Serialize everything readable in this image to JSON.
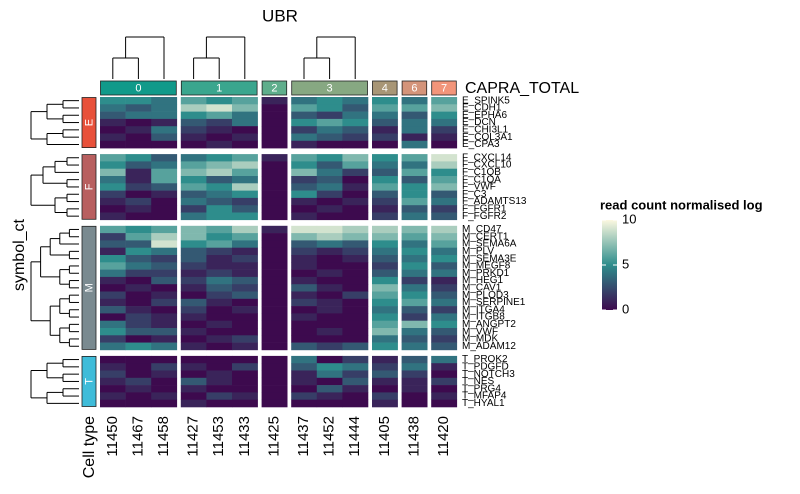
{
  "chart_data": {
    "type": "heatmap",
    "title": "UBR",
    "column_annotation_title": "CAPRA_TOTAL",
    "row_title": "symbol_ct",
    "column_title": "Cell type",
    "legend_title": "read count normalised log",
    "zlim": [
      0,
      10
    ],
    "zticks": [
      0,
      5,
      10
    ],
    "colorscale": [
      "#3d0a4e",
      "#2e8d8c",
      "#fcf8e0"
    ],
    "column_groups": [
      {
        "label": "0",
        "color": "#119a8a",
        "columns": [
          "11450",
          "11467",
          "11458"
        ]
      },
      {
        "label": "1",
        "color": "#3aa68e",
        "columns": [
          "11427",
          "11453",
          "11433"
        ]
      },
      {
        "label": "2",
        "color": "#5fae8c",
        "columns": [
          "11425"
        ]
      },
      {
        "label": "3",
        "color": "#87a882",
        "columns": [
          "11437",
          "11452",
          "11444"
        ]
      },
      {
        "label": "4",
        "color": "#a89676",
        "columns": [
          "11405"
        ]
      },
      {
        "label": "6",
        "color": "#d4947a",
        "columns": [
          "11438"
        ]
      },
      {
        "label": "7",
        "color": "#f2957a",
        "columns": [
          "11420"
        ]
      }
    ],
    "row_groups": [
      {
        "label": "E",
        "color": "#e8513a",
        "rows": [
          "E_SPINK5",
          "E_CDH1",
          "E_EPHA6",
          "E_DCN",
          "E_CHI3L1",
          "E_COL3A1",
          "E_CPA3"
        ],
        "values": [
          [
            5,
            5,
            4,
            6,
            5,
            6,
            1,
            4,
            5,
            4,
            5,
            4,
            6
          ],
          [
            4,
            3,
            4,
            8,
            9,
            7,
            0,
            6,
            5,
            3,
            6,
            6,
            7
          ],
          [
            3,
            4,
            4,
            5,
            6,
            4,
            0,
            3,
            2,
            4,
            4,
            3,
            5
          ],
          [
            1,
            0,
            1,
            3,
            2,
            4,
            0,
            5,
            6,
            5,
            3,
            4,
            4
          ],
          [
            0,
            1,
            4,
            2,
            1,
            0,
            0,
            2,
            4,
            3,
            1,
            4,
            2
          ],
          [
            1,
            0,
            3,
            1,
            0,
            1,
            0,
            4,
            3,
            2,
            2,
            1,
            1
          ],
          [
            0,
            0,
            0,
            0,
            1,
            0,
            0,
            1,
            0,
            0,
            0,
            4,
            0
          ]
        ]
      },
      {
        "label": "F",
        "color": "#b85f5f",
        "rows": [
          "F_CXCL14",
          "F_CXCL10",
          "F_C1QB",
          "F_C1QA",
          "F_VWF",
          "F_C3",
          "F_ADAMTS13",
          "F_FGFR1",
          "F_FGFR2"
        ],
        "values": [
          [
            6,
            5,
            3,
            4,
            5,
            6,
            1,
            6,
            5,
            7,
            5,
            6,
            9
          ],
          [
            5,
            3,
            4,
            6,
            7,
            8,
            0,
            5,
            3,
            6,
            4,
            4,
            8
          ],
          [
            7,
            1,
            6,
            7,
            8,
            6,
            0,
            7,
            4,
            2,
            3,
            6,
            5
          ],
          [
            4,
            1,
            6,
            5,
            3,
            4,
            0,
            2,
            3,
            0,
            5,
            3,
            6
          ],
          [
            5,
            2,
            3,
            6,
            5,
            8,
            0,
            3,
            4,
            1,
            6,
            5,
            7
          ],
          [
            2,
            0,
            1,
            3,
            4,
            5,
            0,
            5,
            2,
            0,
            3,
            5,
            3
          ],
          [
            1,
            2,
            0,
            4,
            3,
            2,
            0,
            1,
            0,
            1,
            2,
            6,
            4
          ],
          [
            0,
            1,
            0,
            2,
            5,
            3,
            0,
            0,
            1,
            0,
            1,
            3,
            2
          ],
          [
            1,
            0,
            0,
            4,
            5,
            5,
            0,
            1,
            0,
            0,
            2,
            4,
            3
          ]
        ]
      },
      {
        "label": "M",
        "color": "#7a8a90",
        "rows": [
          "M_CD47",
          "M_CERT1",
          "M_SEMA6A",
          "M_PLV",
          "M_SEMA3E",
          "M_MEGF8",
          "M_PRKD1",
          "M_HEG1",
          "M_CAV1",
          "M_PLOD3",
          "M_SERPINE1",
          "M_ITGA4",
          "M_ITGB8",
          "M_ANGPT2",
          "M_VWF",
          "M_MDK",
          "M_ADAM12"
        ],
        "values": [
          [
            6,
            5,
            6,
            7,
            6,
            8,
            1,
            9,
            9,
            8,
            8,
            7,
            8
          ],
          [
            2,
            6,
            8,
            7,
            5,
            6,
            0,
            7,
            8,
            7,
            7,
            6,
            7
          ],
          [
            3,
            3,
            9,
            5,
            6,
            4,
            0,
            3,
            4,
            3,
            5,
            4,
            6
          ],
          [
            1,
            5,
            4,
            3,
            2,
            1,
            0,
            2,
            1,
            2,
            4,
            5,
            4
          ],
          [
            5,
            3,
            2,
            3,
            1,
            2,
            0,
            1,
            0,
            1,
            3,
            4,
            5
          ],
          [
            6,
            4,
            3,
            2,
            1,
            1,
            0,
            1,
            0,
            0,
            2,
            5,
            3
          ],
          [
            4,
            2,
            2,
            1,
            2,
            1,
            0,
            0,
            1,
            0,
            3,
            4,
            4
          ],
          [
            1,
            0,
            3,
            2,
            4,
            3,
            0,
            1,
            0,
            0,
            5,
            2,
            1
          ],
          [
            0,
            1,
            0,
            1,
            3,
            2,
            0,
            3,
            1,
            0,
            7,
            4,
            2
          ],
          [
            2,
            0,
            1,
            0,
            2,
            3,
            0,
            1,
            0,
            2,
            6,
            5,
            3
          ],
          [
            1,
            0,
            2,
            3,
            1,
            0,
            0,
            2,
            1,
            0,
            5,
            6,
            4
          ],
          [
            3,
            1,
            0,
            2,
            0,
            1,
            0,
            0,
            1,
            0,
            4,
            3,
            2
          ],
          [
            0,
            2,
            1,
            1,
            0,
            0,
            0,
            1,
            0,
            0,
            5,
            2,
            4
          ],
          [
            4,
            2,
            1,
            0,
            1,
            0,
            0,
            0,
            0,
            0,
            6,
            7,
            5
          ],
          [
            5,
            3,
            3,
            1,
            0,
            0,
            0,
            0,
            1,
            0,
            7,
            4,
            3
          ],
          [
            2,
            0,
            1,
            0,
            1,
            2,
            0,
            0,
            0,
            0,
            4,
            3,
            2
          ],
          [
            4,
            5,
            4,
            1,
            0,
            1,
            0,
            3,
            2,
            3,
            5,
            4,
            3
          ]
        ]
      },
      {
        "label": "T",
        "color": "#3fbcd9",
        "rows": [
          "T_PROK2",
          "T_PDGFD",
          "T_NOTCH3",
          "T_NES",
          "T_PRG4",
          "T_MFAP4",
          "T_HYAL1"
        ],
        "values": [
          [
            0,
            0,
            0,
            0,
            0,
            0,
            0,
            4,
            0,
            2,
            1,
            3,
            4
          ],
          [
            1,
            0,
            2,
            1,
            0,
            2,
            0,
            3,
            5,
            4,
            2,
            4,
            1
          ],
          [
            2,
            0,
            1,
            0,
            1,
            0,
            0,
            1,
            4,
            2,
            3,
            2,
            0
          ],
          [
            1,
            2,
            0,
            3,
            1,
            0,
            0,
            1,
            0,
            3,
            1,
            1,
            2
          ],
          [
            0,
            1,
            0,
            1,
            0,
            0,
            0,
            0,
            3,
            1,
            0,
            1,
            0
          ],
          [
            1,
            0,
            1,
            0,
            2,
            1,
            0,
            2,
            1,
            0,
            2,
            0,
            1
          ],
          [
            0,
            0,
            0,
            1,
            0,
            0,
            0,
            0,
            0,
            0,
            1,
            0,
            0
          ]
        ]
      }
    ]
  }
}
